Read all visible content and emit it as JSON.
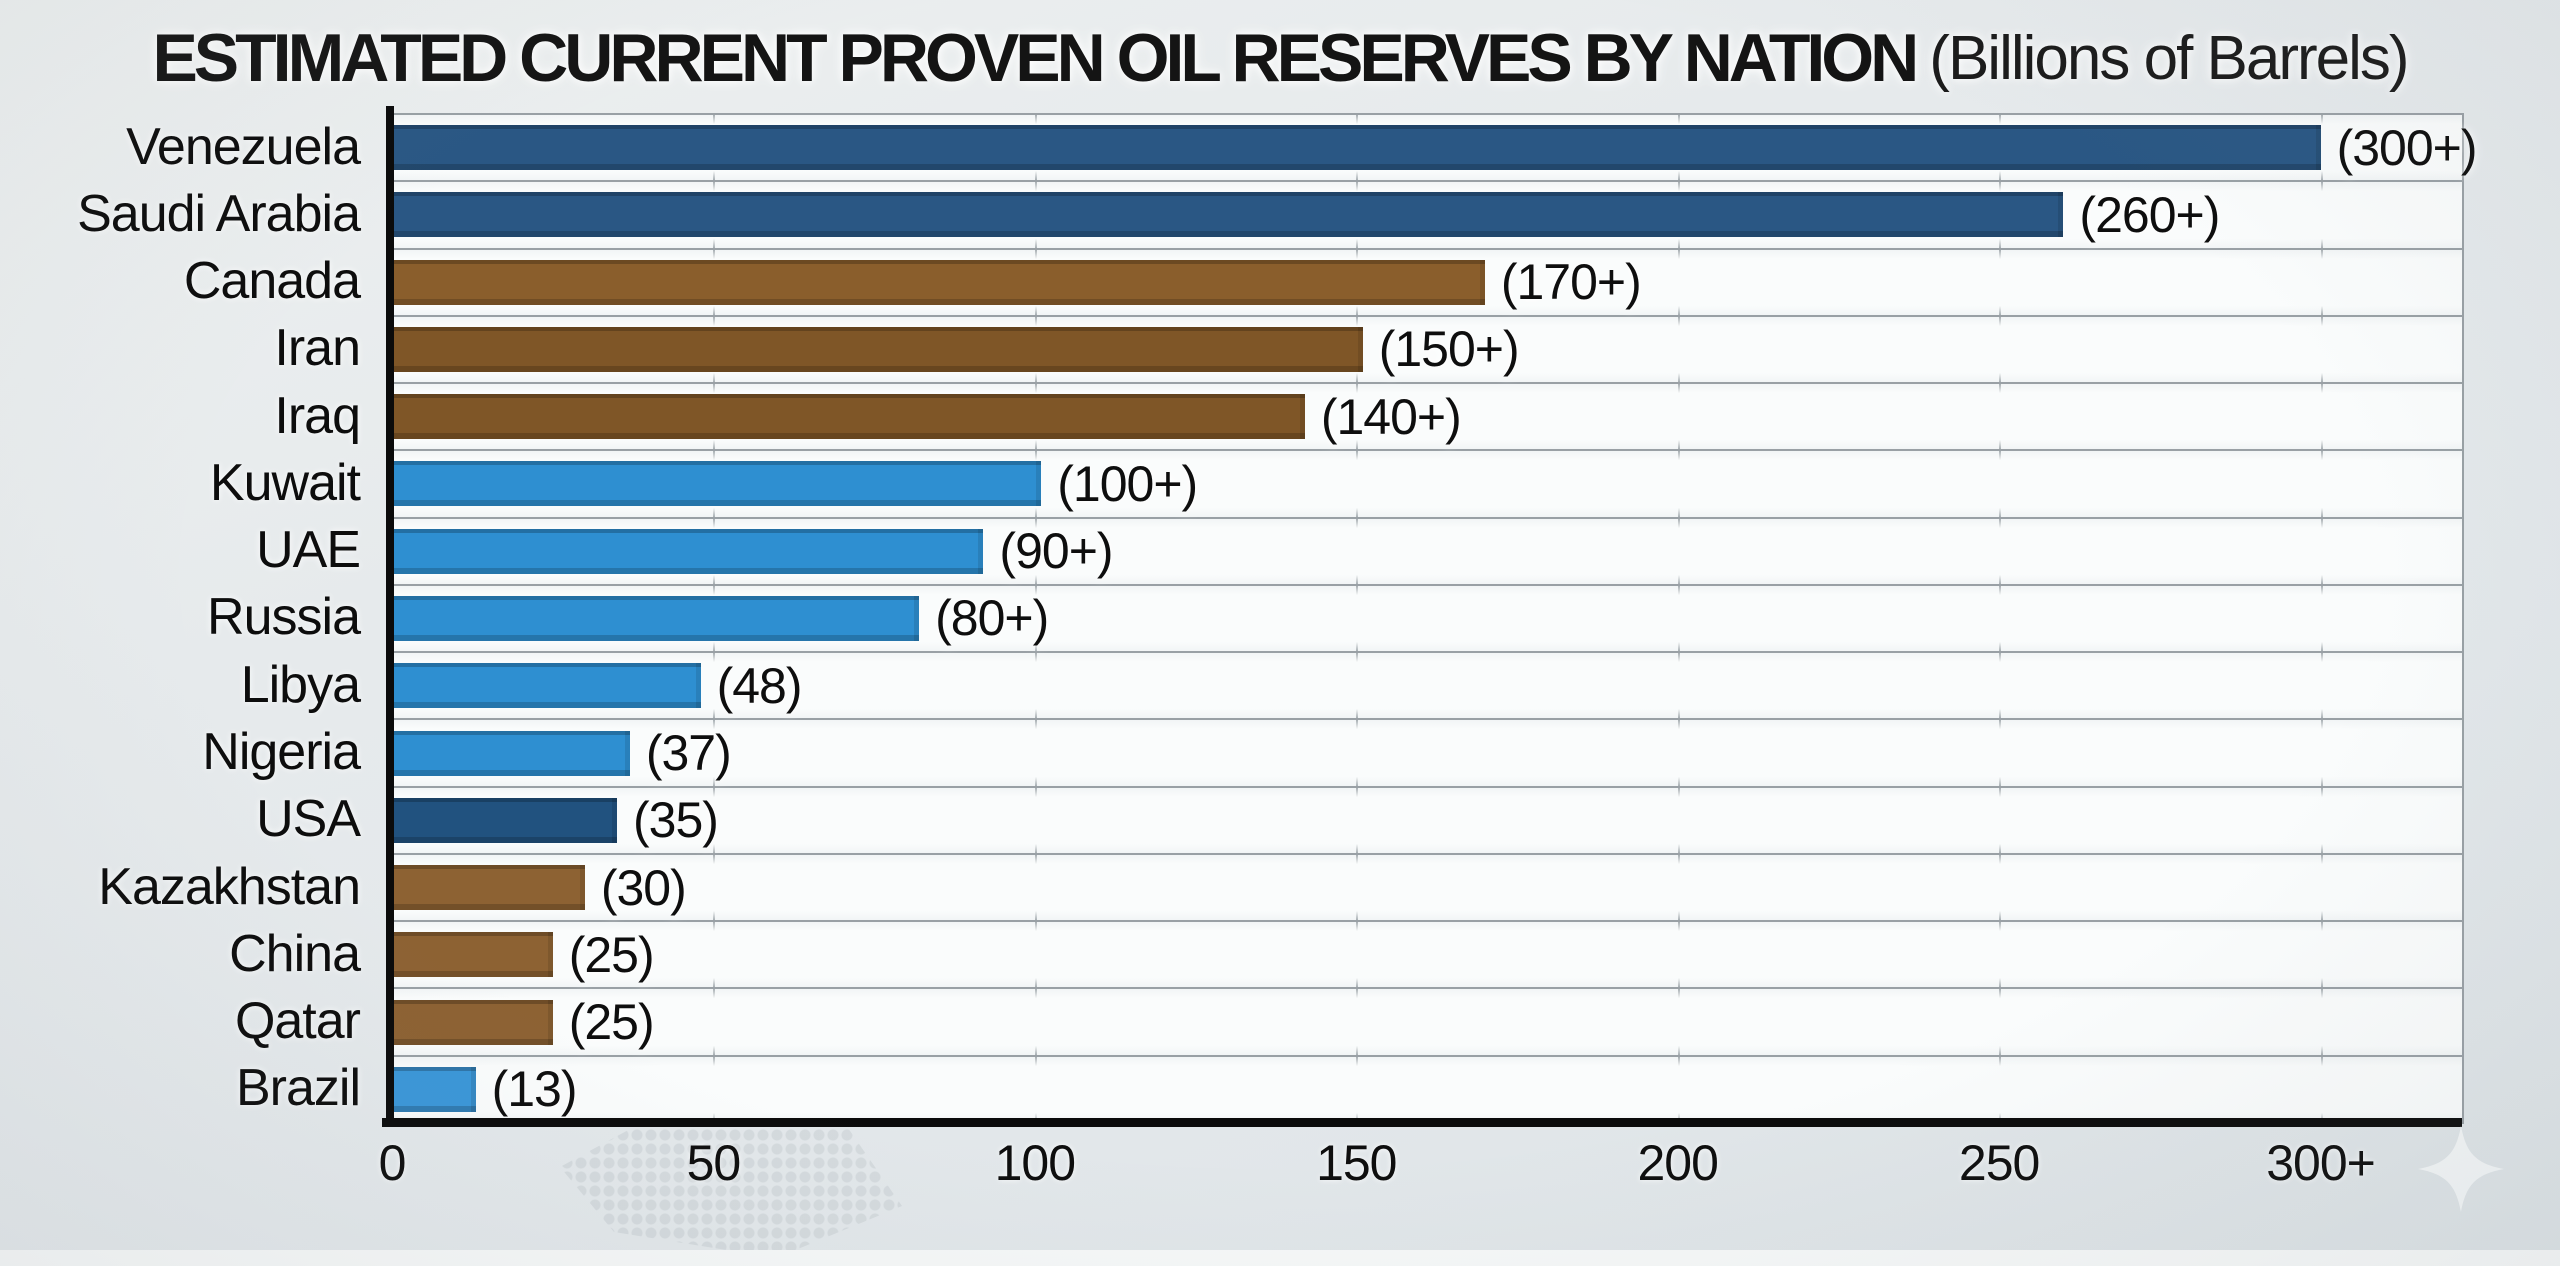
{
  "title": {
    "main": "ESTIMATED CURRENT PROVEN OIL RESERVES BY NATION",
    "sub": "(Billions of Barrels)"
  },
  "palette": {
    "dark_blue": "#2a5784",
    "brown": "#8a5e2c",
    "light_blue": "#2f90d1",
    "background": "#e5e9eb",
    "plot_background": "#f2f5f6",
    "grid": "#99a0a5",
    "axis": "#0b0b0b",
    "text": "#111111"
  },
  "icons": {
    "watermark": "sparkle-icon"
  },
  "chart_data": {
    "type": "bar",
    "orientation": "horizontal",
    "title": "ESTIMATED CURRENT PROVEN OIL RESERVES BY NATION",
    "subtitle": "(Billions of Barrels)",
    "xlabel": "",
    "ylabel": "",
    "xlim": [
      0,
      322
    ],
    "grid": true,
    "x_ticks": [
      {
        "value": 0,
        "label": "0"
      },
      {
        "value": 50,
        "label": "50"
      },
      {
        "value": 100,
        "label": "100"
      },
      {
        "value": 150,
        "label": "150"
      },
      {
        "value": 200,
        "label": "200"
      },
      {
        "value": 250,
        "label": "250"
      },
      {
        "value": 300,
        "label": "300+"
      }
    ],
    "rows": [
      {
        "label": "Venezuela",
        "value": 300,
        "value_label": "(300+)",
        "color": "#2a5784"
      },
      {
        "label": "Saudi Arabia",
        "value": 260,
        "value_label": "(260+)",
        "color": "#2a5784"
      },
      {
        "label": "Canada",
        "value": 170,
        "value_label": "(170+)",
        "color": "#8a5e2c"
      },
      {
        "label": "Iran",
        "value": 151,
        "value_label": "(150+)",
        "color": "#7f5627"
      },
      {
        "label": "Iraq",
        "value": 142,
        "value_label": "(140+)",
        "color": "#7f5627"
      },
      {
        "label": "Kuwait",
        "value": 101,
        "value_label": "(100+)",
        "color": "#2e8fd1"
      },
      {
        "label": "UAE",
        "value": 92,
        "value_label": "(90+)",
        "color": "#2e8fd1"
      },
      {
        "label": "Russia",
        "value": 82,
        "value_label": "(80+)",
        "color": "#2e8fd1"
      },
      {
        "label": "Libya",
        "value": 48,
        "value_label": "(48)",
        "color": "#2e8fd1"
      },
      {
        "label": "Nigeria",
        "value": 37,
        "value_label": "(37)",
        "color": "#2e8fd1"
      },
      {
        "label": "USA",
        "value": 35,
        "value_label": "(35)",
        "color": "#21527f"
      },
      {
        "label": "Kazakhstan",
        "value": 30,
        "value_label": "(30)",
        "color": "#8d6233"
      },
      {
        "label": "China",
        "value": 25,
        "value_label": "(25)",
        "color": "#8d6233"
      },
      {
        "label": "Qatar",
        "value": 25,
        "value_label": "(25)",
        "color": "#8d6233"
      },
      {
        "label": "Brazil",
        "value": 13,
        "value_label": "(13)",
        "color": "#3b97d8"
      }
    ]
  }
}
